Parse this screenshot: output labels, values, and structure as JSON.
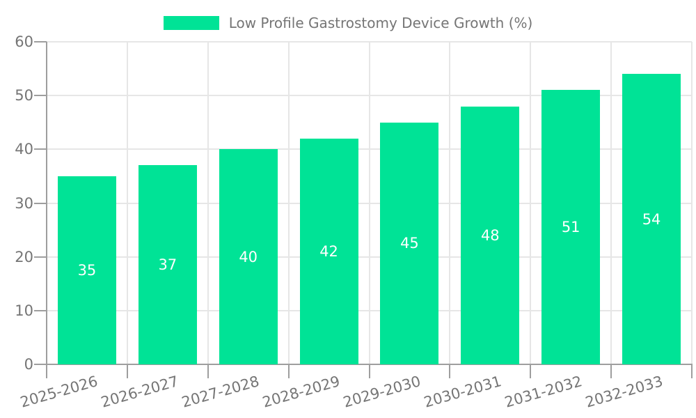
{
  "legend": {
    "label": "Low Profile Gastrostomy Device Growth (%)"
  },
  "chart_data": {
    "type": "bar",
    "title": "Low Profile Gastrostomy Device Growth (%)",
    "categories": [
      "2025-2026",
      "2026-2027",
      "2027-2028",
      "2028-2029",
      "2029-2030",
      "2030-2031",
      "2031-2032",
      "2032-2033"
    ],
    "values": [
      35,
      37,
      40,
      42,
      45,
      48,
      51,
      54
    ],
    "series_name": "Low Profile Gastrostomy Device Growth (%)",
    "xlabel": "",
    "ylabel": "",
    "ylim": [
      0,
      60
    ],
    "yticks": [
      0,
      10,
      20,
      30,
      40,
      50,
      60
    ],
    "grid": true,
    "legend_position": "top",
    "bar_color": "#00E396",
    "value_labels_shown": true,
    "value_label_color": "#FFFFFF",
    "axis_text_color": "#757575",
    "grid_color": "#E6E6E6",
    "axis_line_color": "#9E9E9E",
    "background_color": "#FFFFFF"
  }
}
